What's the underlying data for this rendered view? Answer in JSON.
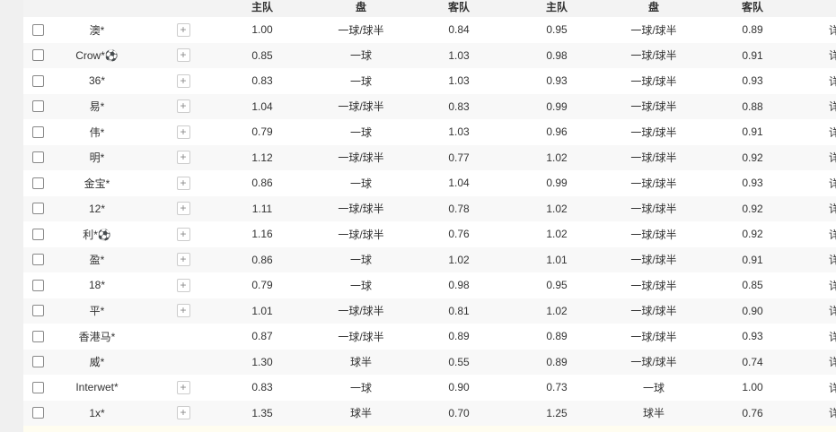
{
  "header": {
    "home": "主队",
    "line": "盘",
    "away": "客队",
    "home2": "主队",
    "line2": "盘",
    "away2": "客队"
  },
  "detail_label": "详",
  "rows": [
    {
      "name": "澳*",
      "plus": true,
      "h1": "1.00",
      "p1": "一球/球半",
      "a1": "0.84",
      "h2": "0.95",
      "p2": "一球/球半",
      "a2": "0.89"
    },
    {
      "name": "Crow*⚽",
      "plus": true,
      "h1": "0.85",
      "p1": "一球",
      "a1": "1.03",
      "h2": "0.98",
      "p2": "一球/球半",
      "a2": "0.91"
    },
    {
      "name": "36*",
      "plus": true,
      "h1": "0.83",
      "p1": "一球",
      "a1": "1.03",
      "h2": "0.93",
      "p2": "一球/球半",
      "a2": "0.93"
    },
    {
      "name": "易*",
      "plus": true,
      "h1": "1.04",
      "p1": "一球/球半",
      "a1": "0.83",
      "h2": "0.99",
      "p2": "一球/球半",
      "a2": "0.88"
    },
    {
      "name": "伟*",
      "plus": true,
      "h1": "0.79",
      "p1": "一球",
      "a1": "1.03",
      "h2": "0.96",
      "p2": "一球/球半",
      "a2": "0.91"
    },
    {
      "name": "明*",
      "plus": true,
      "h1": "1.12",
      "p1": "一球/球半",
      "a1": "0.77",
      "h2": "1.02",
      "p2": "一球/球半",
      "a2": "0.92"
    },
    {
      "name": "金宝*",
      "plus": true,
      "h1": "0.86",
      "p1": "一球",
      "a1": "1.04",
      "h2": "0.99",
      "p2": "一球/球半",
      "a2": "0.93"
    },
    {
      "name": "12*",
      "plus": true,
      "h1": "1.11",
      "p1": "一球/球半",
      "a1": "0.78",
      "h2": "1.02",
      "p2": "一球/球半",
      "a2": "0.92"
    },
    {
      "name": "利*⚽",
      "plus": true,
      "h1": "1.16",
      "p1": "一球/球半",
      "a1": "0.76",
      "h2": "1.02",
      "p2": "一球/球半",
      "a2": "0.92"
    },
    {
      "name": "盈*",
      "plus": true,
      "h1": "0.86",
      "p1": "一球",
      "a1": "1.02",
      "h2": "1.01",
      "p2": "一球/球半",
      "a2": "0.91"
    },
    {
      "name": "18*",
      "plus": true,
      "h1": "0.79",
      "p1": "一球",
      "a1": "0.98",
      "h2": "0.95",
      "p2": "一球/球半",
      "a2": "0.85"
    },
    {
      "name": "平*",
      "plus": true,
      "h1": "1.01",
      "p1": "一球/球半",
      "a1": "0.81",
      "h2": "1.02",
      "p2": "一球/球半",
      "a2": "0.90"
    },
    {
      "name": "香港马*",
      "plus": false,
      "h1": "0.87",
      "p1": "一球/球半",
      "a1": "0.89",
      "h2": "0.89",
      "p2": "一球/球半",
      "a2": "0.93"
    },
    {
      "name": "威*",
      "plus": false,
      "h1": "1.30",
      "p1": "球半",
      "a1": "0.55",
      "h2": "0.89",
      "p2": "一球/球半",
      "a2": "0.74"
    },
    {
      "name": "Interwet*",
      "plus": true,
      "h1": "0.83",
      "p1": "一球",
      "a1": "0.90",
      "h2": "0.73",
      "p2": "一球",
      "a2": "1.00"
    },
    {
      "name": "1x*",
      "plus": true,
      "h1": "1.35",
      "p1": "球半",
      "a1": "0.70",
      "h2": "1.25",
      "p2": "球半",
      "a2": "0.76"
    }
  ]
}
